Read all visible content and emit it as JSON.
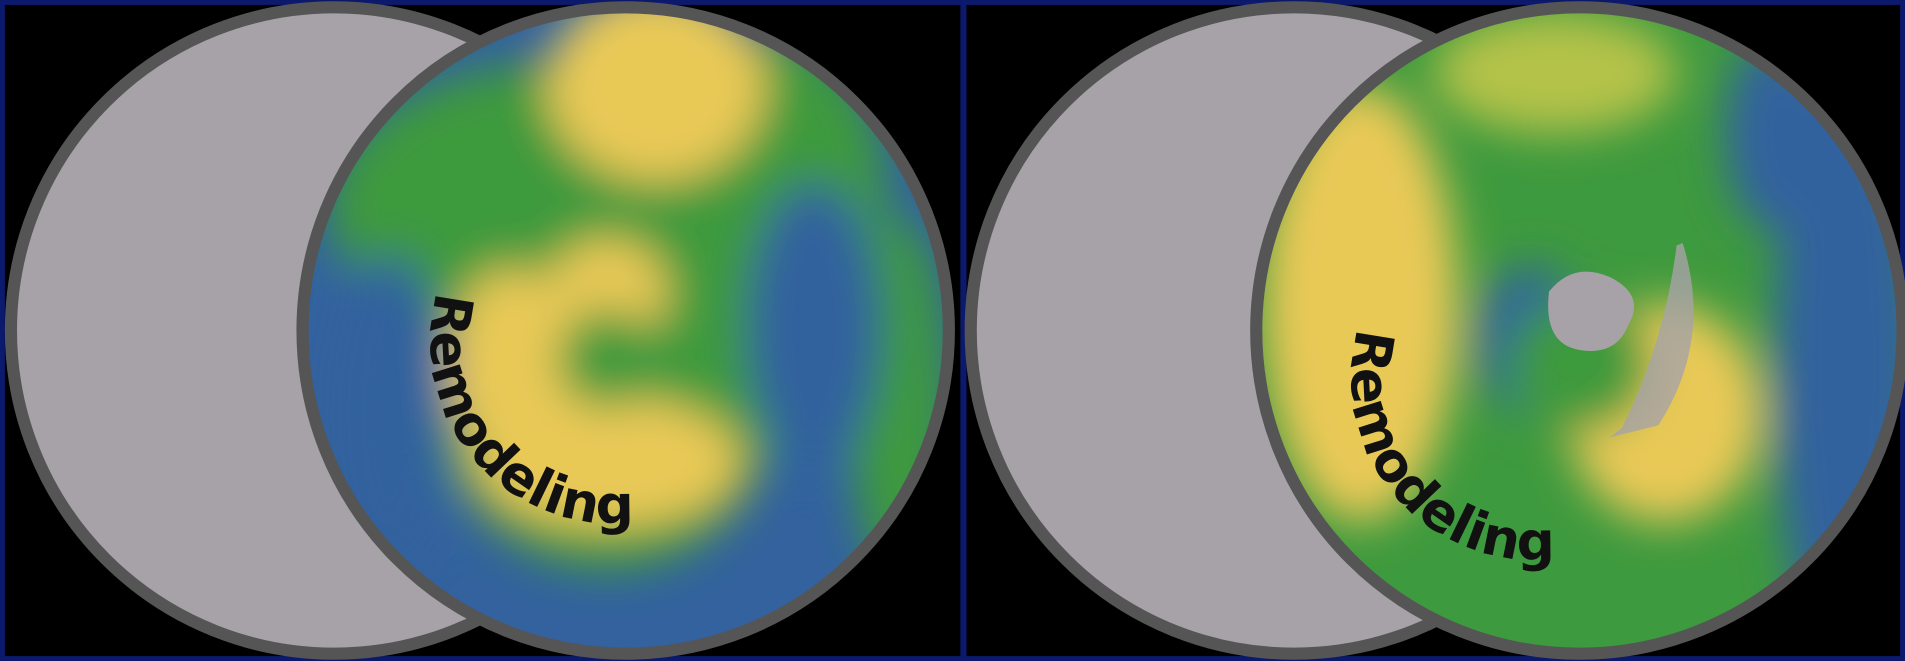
{
  "panels": [
    {
      "label": "Remodeling"
    },
    {
      "label": "Remodeling"
    }
  ]
}
